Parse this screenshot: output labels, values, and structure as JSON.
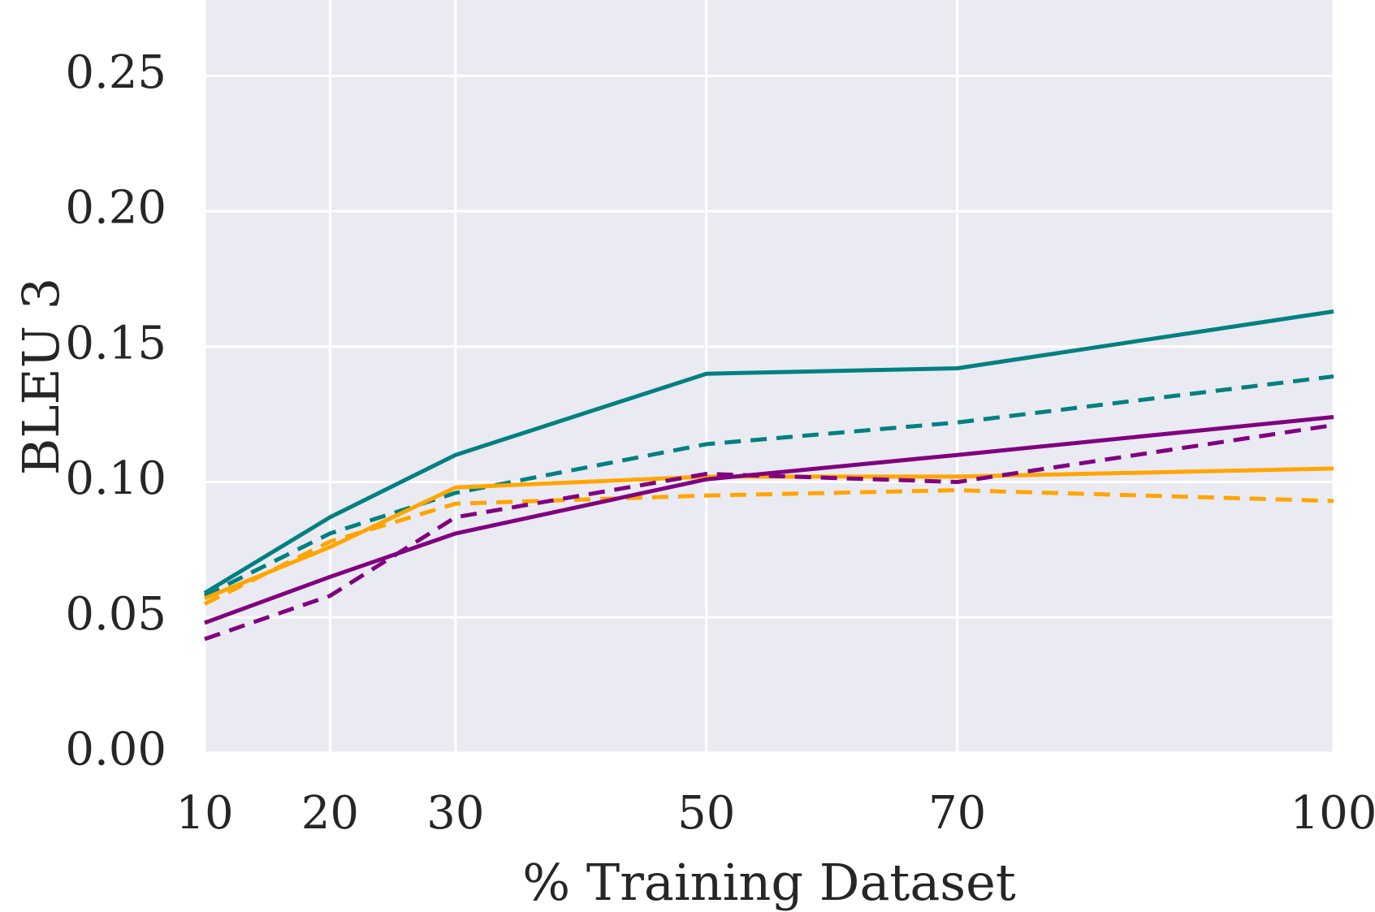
{
  "chart_data": {
    "type": "line",
    "title": "",
    "xlabel": "% Training Dataset",
    "ylabel": "BLEU 3",
    "x": [
      10,
      20,
      30,
      50,
      70,
      100
    ],
    "x_tick_labels": [
      "10",
      "20",
      "30",
      "50",
      "70",
      "100"
    ],
    "y_tick_labels": [
      "0.00",
      "0.05",
      "0.10",
      "0.15",
      "0.20",
      "0.25"
    ],
    "y_ticks": [
      0.0,
      0.05,
      0.1,
      0.15,
      0.2,
      0.25
    ],
    "xlim": [
      10,
      100
    ],
    "ylim": [
      0,
      0.278
    ],
    "grid": true,
    "legend": "none",
    "background_color": "#EAEAF2",
    "series": [
      {
        "color": "#008080",
        "style": "solid",
        "values": [
          0.059,
          0.087,
          0.11,
          0.14,
          0.142,
          0.163
        ]
      },
      {
        "color": "#008080",
        "style": "dashed",
        "values": [
          0.058,
          0.081,
          0.096,
          0.114,
          0.122,
          0.139
        ]
      },
      {
        "color": "#FFA500",
        "style": "solid",
        "values": [
          0.057,
          0.076,
          0.098,
          0.102,
          0.102,
          0.105
        ]
      },
      {
        "color": "#FFA500",
        "style": "dashed",
        "values": [
          0.055,
          0.078,
          0.092,
          0.095,
          0.097,
          0.093
        ]
      },
      {
        "color": "#800080",
        "style": "solid",
        "values": [
          0.048,
          0.065,
          0.081,
          0.101,
          0.11,
          0.124
        ]
      },
      {
        "color": "#800080",
        "style": "dashed",
        "values": [
          0.042,
          0.058,
          0.087,
          0.103,
          0.1,
          0.121
        ]
      }
    ]
  }
}
